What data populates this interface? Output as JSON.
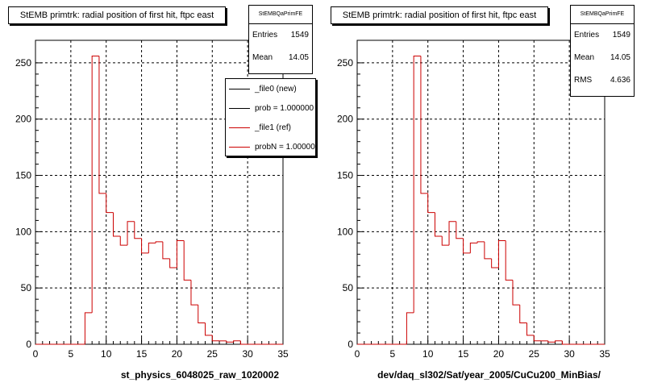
{
  "colors": {
    "ref": "#cc0000",
    "new": "#000000",
    "grid": "#000000"
  },
  "panels": [
    {
      "title": "StEMB primtrk: radial position of first hit, ftpc east",
      "stats": {
        "name": "StEMBQaPrimFE",
        "rows": [
          {
            "label": "Entries",
            "value": "1549"
          },
          {
            "label": "Mean",
            "value": "14.05"
          }
        ]
      },
      "xlabel": "st_physics_6048025_raw_1020002",
      "legend": [
        {
          "label": "_file0 (new)",
          "color": "#000000"
        },
        {
          "label": "prob = 1.000000",
          "color": "#000000"
        },
        {
          "label": "_file1 (ref)",
          "color": "#cc0000"
        },
        {
          "label": "probN = 1.000000",
          "color": "#cc0000"
        }
      ]
    },
    {
      "title": "StEMB primtrk: radial position of first hit, ftpc east",
      "stats": {
        "name": "StEMBQaPrimFE",
        "rows": [
          {
            "label": "Entries",
            "value": "1549"
          },
          {
            "label": "Mean",
            "value": "14.05"
          },
          {
            "label": "RMS",
            "value": "4.636"
          }
        ]
      },
      "xlabel": "dev/daq_sl302/Sat/year_2005/CuCu200_MinBias/"
    }
  ],
  "chart_data": [
    {
      "type": "bar",
      "title": "StEMB primtrk: radial position of first hit, ftpc east",
      "xlabel": "st_physics_6048025_raw_1020002",
      "xlim": [
        0,
        35
      ],
      "ylim": [
        0,
        270
      ],
      "xticks": [
        "0",
        "5",
        "10",
        "15",
        "20",
        "25",
        "30",
        "35"
      ],
      "yticks": [
        "0",
        "50",
        "100",
        "150",
        "200",
        "250"
      ],
      "grid": true,
      "bin_width": 1,
      "bin_low_edges": [
        0,
        1,
        2,
        3,
        4,
        5,
        6,
        7,
        8,
        9,
        10,
        11,
        12,
        13,
        14,
        15,
        16,
        17,
        18,
        19,
        20,
        21,
        22,
        23,
        24,
        25,
        26,
        27,
        28,
        29,
        30,
        31,
        32,
        33,
        34
      ],
      "series": [
        {
          "name": "_file1 (ref)",
          "values": [
            0,
            0,
            0,
            0,
            0,
            0,
            0,
            28,
            256,
            134,
            117,
            96,
            88,
            109,
            94,
            81,
            90,
            91,
            76,
            68,
            92,
            57,
            35,
            19,
            8,
            3,
            3,
            2,
            3,
            0,
            0,
            0,
            0,
            0,
            0
          ]
        }
      ]
    },
    {
      "type": "bar",
      "title": "StEMB primtrk: radial position of first hit, ftpc east",
      "xlabel": "dev/daq_sl302/Sat/year_2005/CuCu200_MinBias/",
      "xlim": [
        0,
        35
      ],
      "ylim": [
        0,
        270
      ],
      "xticks": [
        "0",
        "5",
        "10",
        "15",
        "20",
        "25",
        "30",
        "35"
      ],
      "yticks": [
        "0",
        "50",
        "100",
        "150",
        "200",
        "250"
      ],
      "grid": true,
      "bin_width": 1,
      "bin_low_edges": [
        0,
        1,
        2,
        3,
        4,
        5,
        6,
        7,
        8,
        9,
        10,
        11,
        12,
        13,
        14,
        15,
        16,
        17,
        18,
        19,
        20,
        21,
        22,
        23,
        24,
        25,
        26,
        27,
        28,
        29,
        30,
        31,
        32,
        33,
        34
      ],
      "series": [
        {
          "name": "_file1 (ref)",
          "values": [
            0,
            0,
            0,
            0,
            0,
            0,
            0,
            28,
            256,
            134,
            117,
            96,
            88,
            109,
            94,
            81,
            90,
            91,
            76,
            68,
            92,
            57,
            35,
            19,
            8,
            3,
            3,
            2,
            3,
            0,
            0,
            0,
            0,
            0,
            0
          ]
        }
      ]
    }
  ]
}
